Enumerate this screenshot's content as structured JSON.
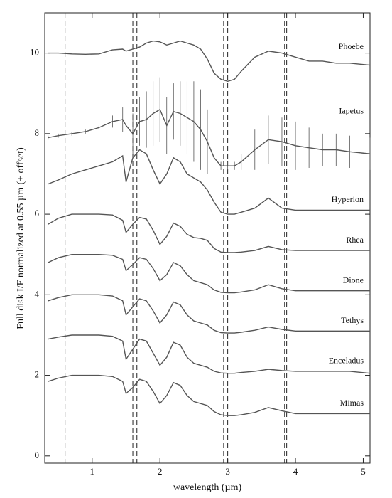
{
  "chart_data": {
    "type": "line",
    "xlabel": "wavelength (µm)",
    "ylabel": "Full disk I/F normalized at 0.55 µm (+ offset)",
    "xlim": [
      0.3,
      5.1
    ],
    "ylim": [
      -0.18,
      11
    ],
    "xticks": [
      1,
      2,
      3,
      4,
      5
    ],
    "yticks": [
      0,
      2,
      4,
      6,
      8,
      10
    ],
    "vlines": [
      0.6,
      1.6,
      1.66,
      2.94,
      3.0,
      3.84,
      3.87
    ],
    "x": [
      0.35,
      0.5,
      0.7,
      0.9,
      1.1,
      1.3,
      1.45,
      1.5,
      1.6,
      1.7,
      1.8,
      1.9,
      2.0,
      2.1,
      2.2,
      2.3,
      2.4,
      2.5,
      2.6,
      2.7,
      2.8,
      2.9,
      3.0,
      3.1,
      3.2,
      3.4,
      3.6,
      3.8,
      4.0,
      4.2,
      4.4,
      4.6,
      4.8,
      5.1
    ],
    "series": [
      {
        "name": "Phoebe",
        "color": "#555555",
        "values": [
          10.0,
          10.0,
          9.98,
          9.97,
          9.98,
          10.08,
          10.1,
          10.05,
          10.1,
          10.15,
          10.25,
          10.3,
          10.28,
          10.2,
          10.25,
          10.3,
          10.25,
          10.2,
          10.1,
          9.85,
          9.5,
          9.35,
          9.3,
          9.35,
          9.55,
          9.9,
          10.05,
          10.0,
          9.9,
          9.8,
          9.8,
          9.75,
          9.75,
          9.7
        ]
      },
      {
        "name": "Iapetus",
        "color": "#555555",
        "values": [
          7.9,
          7.95,
          8.0,
          8.05,
          8.15,
          8.3,
          8.35,
          8.2,
          8.0,
          8.3,
          8.35,
          8.5,
          8.6,
          8.2,
          8.55,
          8.5,
          8.4,
          8.3,
          8.1,
          7.8,
          7.4,
          7.2,
          7.2,
          7.2,
          7.3,
          7.6,
          7.85,
          7.8,
          7.7,
          7.65,
          7.6,
          7.6,
          7.55,
          7.5
        ],
        "errors": [
          0.05,
          0.05,
          0.05,
          0.05,
          0.05,
          0.15,
          0.3,
          0.4,
          0.5,
          0.6,
          0.7,
          0.8,
          0.8,
          0.7,
          0.7,
          0.8,
          0.9,
          1.0,
          1.0,
          0.8,
          0.3,
          0.1,
          0.1,
          0.1,
          0.2,
          0.5,
          0.6,
          0.6,
          0.6,
          0.5,
          0.4,
          0.4,
          0.4,
          0.4
        ]
      },
      {
        "name": "Hyperion",
        "color": "#555555",
        "values": [
          6.75,
          6.85,
          7.0,
          7.1,
          7.2,
          7.3,
          7.45,
          6.8,
          7.4,
          7.6,
          7.5,
          7.1,
          6.75,
          7.0,
          7.4,
          7.3,
          7.0,
          6.9,
          6.8,
          6.6,
          6.3,
          6.05,
          6.0,
          6.0,
          6.05,
          6.15,
          6.4,
          6.15,
          6.1,
          6.1,
          6.1,
          6.1,
          6.1,
          6.1
        ]
      },
      {
        "name": "Rhea",
        "color": "#555555",
        "values": [
          5.75,
          5.9,
          6.0,
          6.0,
          6.0,
          5.98,
          5.85,
          5.55,
          5.75,
          5.92,
          5.88,
          5.6,
          5.25,
          5.45,
          5.78,
          5.7,
          5.5,
          5.42,
          5.4,
          5.35,
          5.15,
          5.06,
          5.05,
          5.05,
          5.06,
          5.1,
          5.2,
          5.12,
          5.1,
          5.1,
          5.1,
          5.1,
          5.1,
          5.1
        ]
      },
      {
        "name": "Dione",
        "color": "#555555",
        "values": [
          4.8,
          4.92,
          5.0,
          5.0,
          5.0,
          4.98,
          4.88,
          4.6,
          4.75,
          4.92,
          4.88,
          4.65,
          4.35,
          4.5,
          4.8,
          4.72,
          4.5,
          4.35,
          4.3,
          4.25,
          4.12,
          4.06,
          4.05,
          4.05,
          4.07,
          4.12,
          4.25,
          4.15,
          4.1,
          4.1,
          4.1,
          4.1,
          4.1,
          4.1
        ]
      },
      {
        "name": "Tethys",
        "color": "#555555",
        "values": [
          3.85,
          3.93,
          4.0,
          4.0,
          4.0,
          3.97,
          3.85,
          3.5,
          3.7,
          3.9,
          3.85,
          3.6,
          3.3,
          3.5,
          3.82,
          3.75,
          3.5,
          3.35,
          3.3,
          3.25,
          3.12,
          3.06,
          3.05,
          3.05,
          3.07,
          3.12,
          3.2,
          3.14,
          3.1,
          3.1,
          3.1,
          3.1,
          3.1,
          3.1
        ]
      },
      {
        "name": "Enceladus",
        "color": "#555555",
        "values": [
          2.9,
          2.95,
          3.0,
          3.0,
          3.0,
          2.97,
          2.85,
          2.4,
          2.65,
          2.9,
          2.85,
          2.55,
          2.25,
          2.45,
          2.82,
          2.75,
          2.45,
          2.3,
          2.25,
          2.2,
          2.1,
          2.06,
          2.05,
          2.05,
          2.07,
          2.1,
          2.15,
          2.12,
          2.1,
          2.1,
          2.1,
          2.1,
          2.1,
          2.05
        ]
      },
      {
        "name": "Mimas",
        "color": "#555555",
        "values": [
          1.85,
          1.93,
          2.0,
          2.0,
          2.0,
          1.97,
          1.85,
          1.55,
          1.7,
          1.9,
          1.85,
          1.6,
          1.3,
          1.5,
          1.82,
          1.75,
          1.5,
          1.35,
          1.3,
          1.25,
          1.1,
          1.02,
          1.0,
          1.0,
          1.02,
          1.08,
          1.2,
          1.12,
          1.05,
          1.05,
          1.05,
          1.05,
          1.05,
          1.05
        ]
      }
    ]
  }
}
